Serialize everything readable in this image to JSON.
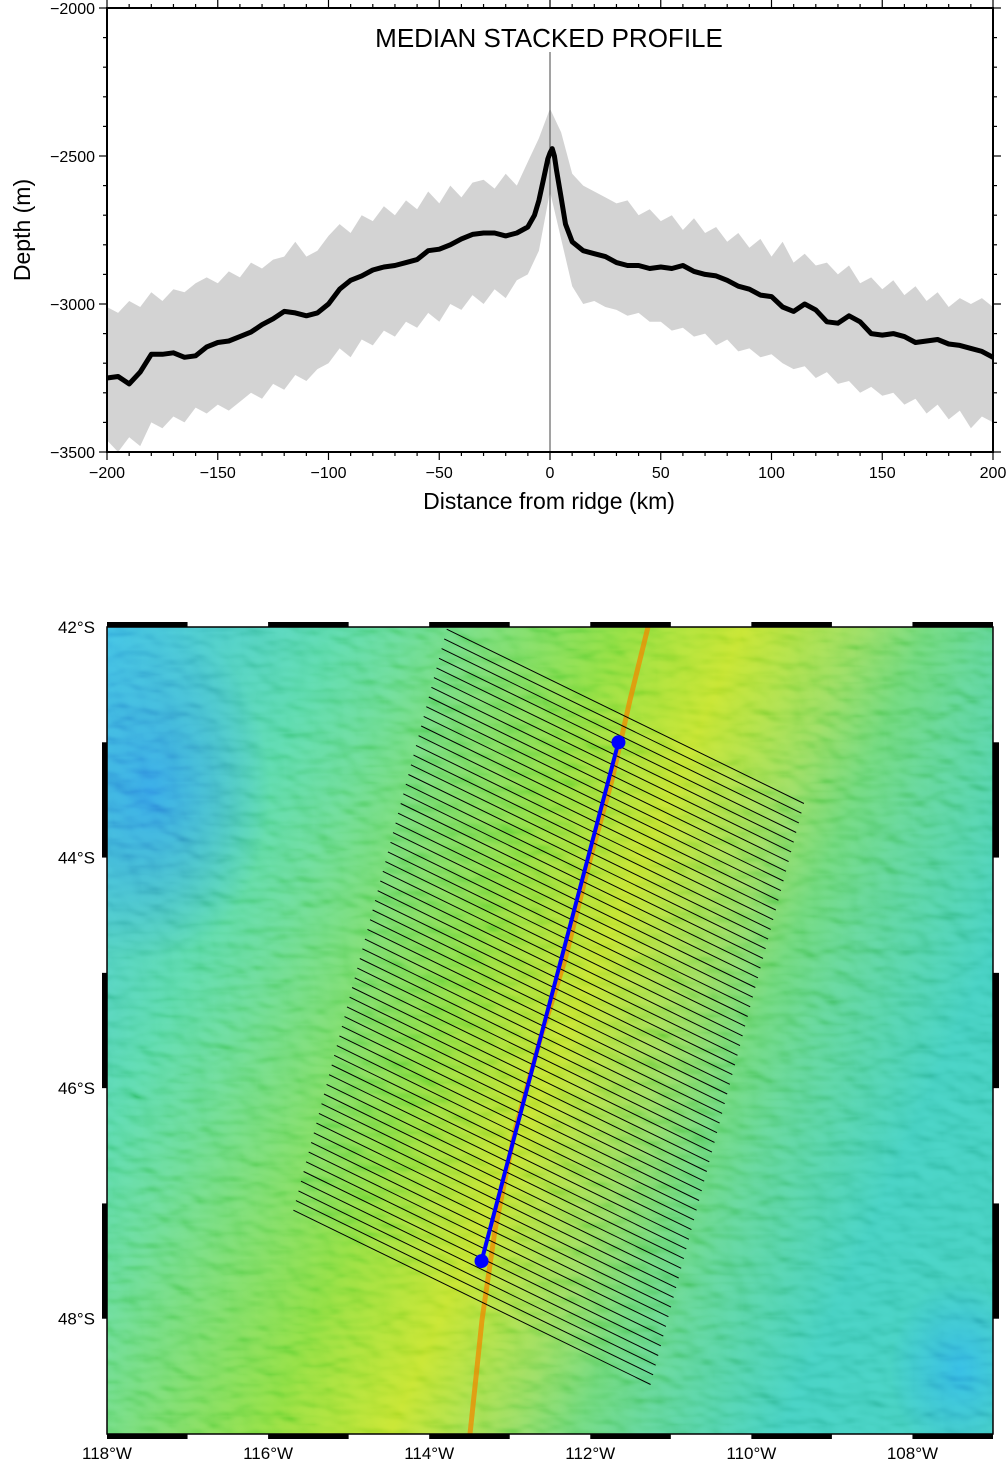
{
  "chart_data": [
    {
      "type": "line",
      "title": "MEDIAN STACKED PROFILE",
      "xlabel": "Distance from ridge (km)",
      "ylabel": "Depth (m)",
      "xlim": [
        -200,
        200
      ],
      "ylim": [
        -3500,
        -2000
      ],
      "x_ticks": [
        -200,
        -150,
        -100,
        -50,
        0,
        50,
        100,
        150,
        200
      ],
      "x_tick_labels": [
        "−200",
        "−150",
        "−100",
        "−50",
        "0",
        "50",
        "100",
        "150",
        "200"
      ],
      "y_ticks": [
        -3500,
        -3000,
        -2500,
        -2000
      ],
      "y_tick_labels": [
        "−3500",
        "−3000",
        "−2500",
        "−2000"
      ],
      "grid": false,
      "ridge_marker_x": 0,
      "colors": {
        "median": "#000000",
        "envelope": "#d3d3d3"
      },
      "median": {
        "x": [
          -200,
          -195,
          -190,
          -185,
          -180,
          -175,
          -170,
          -165,
          -160,
          -155,
          -150,
          -145,
          -140,
          -135,
          -130,
          -125,
          -120,
          -115,
          -110,
          -105,
          -100,
          -95,
          -90,
          -85,
          -80,
          -75,
          -70,
          -65,
          -60,
          -55,
          -50,
          -45,
          -40,
          -35,
          -30,
          -25,
          -20,
          -15,
          -10,
          -7,
          -5,
          -3,
          -1,
          0,
          1,
          2,
          3,
          5,
          7,
          10,
          15,
          20,
          25,
          30,
          35,
          40,
          45,
          50,
          55,
          60,
          65,
          70,
          75,
          80,
          85,
          90,
          95,
          100,
          105,
          110,
          115,
          120,
          125,
          130,
          135,
          140,
          145,
          150,
          155,
          160,
          165,
          170,
          175,
          180,
          185,
          190,
          195,
          200
        ],
        "y": [
          -3250,
          -3245,
          -3270,
          -3230,
          -3170,
          -3170,
          -3165,
          -3180,
          -3175,
          -3145,
          -3130,
          -3125,
          -3110,
          -3095,
          -3070,
          -3050,
          -3025,
          -3030,
          -3040,
          -3030,
          -3000,
          -2950,
          -2920,
          -2905,
          -2885,
          -2875,
          -2870,
          -2860,
          -2850,
          -2820,
          -2815,
          -2800,
          -2780,
          -2765,
          -2760,
          -2760,
          -2770,
          -2760,
          -2740,
          -2700,
          -2650,
          -2580,
          -2510,
          -2490,
          -2475,
          -2500,
          -2550,
          -2640,
          -2730,
          -2790,
          -2820,
          -2830,
          -2840,
          -2860,
          -2870,
          -2870,
          -2880,
          -2875,
          -2880,
          -2870,
          -2890,
          -2900,
          -2905,
          -2920,
          -2940,
          -2950,
          -2970,
          -2975,
          -3010,
          -3025,
          -3000,
          -3020,
          -3060,
          -3065,
          -3040,
          -3060,
          -3100,
          -3105,
          -3100,
          -3110,
          -3130,
          -3125,
          -3120,
          -3135,
          -3140,
          -3150,
          -3160,
          -3180
        ]
      },
      "envelope_upper": {
        "x": [
          -200,
          -195,
          -190,
          -185,
          -180,
          -175,
          -170,
          -165,
          -160,
          -155,
          -150,
          -145,
          -140,
          -135,
          -130,
          -125,
          -120,
          -115,
          -110,
          -105,
          -100,
          -95,
          -90,
          -85,
          -80,
          -75,
          -70,
          -65,
          -60,
          -55,
          -50,
          -45,
          -40,
          -35,
          -30,
          -25,
          -20,
          -15,
          -10,
          -5,
          0,
          5,
          10,
          15,
          20,
          25,
          30,
          35,
          40,
          45,
          50,
          55,
          60,
          65,
          70,
          75,
          80,
          85,
          90,
          95,
          100,
          105,
          110,
          115,
          120,
          125,
          130,
          135,
          140,
          145,
          150,
          155,
          160,
          165,
          170,
          175,
          180,
          185,
          190,
          195,
          200
        ],
        "y": [
          -3010,
          -3030,
          -2990,
          -3010,
          -2960,
          -2990,
          -2950,
          -2960,
          -2930,
          -2910,
          -2930,
          -2890,
          -2910,
          -2860,
          -2880,
          -2850,
          -2840,
          -2790,
          -2840,
          -2820,
          -2770,
          -2730,
          -2760,
          -2700,
          -2720,
          -2670,
          -2700,
          -2650,
          -2680,
          -2620,
          -2660,
          -2600,
          -2640,
          -2590,
          -2580,
          -2610,
          -2560,
          -2600,
          -2520,
          -2440,
          -2340,
          -2420,
          -2560,
          -2600,
          -2620,
          -2640,
          -2660,
          -2650,
          -2700,
          -2680,
          -2720,
          -2700,
          -2750,
          -2710,
          -2760,
          -2740,
          -2790,
          -2760,
          -2810,
          -2780,
          -2840,
          -2790,
          -2860,
          -2830,
          -2870,
          -2860,
          -2900,
          -2870,
          -2930,
          -2910,
          -2950,
          -2920,
          -2970,
          -2940,
          -2990,
          -2960,
          -3010,
          -2980,
          -3000,
          -2980,
          -3010
        ]
      },
      "envelope_lower": {
        "x": [
          -200,
          -195,
          -190,
          -185,
          -180,
          -175,
          -170,
          -165,
          -160,
          -155,
          -150,
          -145,
          -140,
          -135,
          -130,
          -125,
          -120,
          -115,
          -110,
          -105,
          -100,
          -95,
          -90,
          -85,
          -80,
          -75,
          -70,
          -65,
          -60,
          -55,
          -50,
          -45,
          -40,
          -35,
          -30,
          -25,
          -20,
          -15,
          -10,
          -5,
          0,
          5,
          10,
          15,
          20,
          25,
          30,
          35,
          40,
          45,
          50,
          55,
          60,
          65,
          70,
          75,
          80,
          85,
          90,
          95,
          100,
          105,
          110,
          115,
          120,
          125,
          130,
          135,
          140,
          145,
          150,
          155,
          160,
          165,
          170,
          175,
          180,
          185,
          190,
          195,
          200
        ],
        "y": [
          -3460,
          -3500,
          -3450,
          -3480,
          -3400,
          -3420,
          -3380,
          -3400,
          -3350,
          -3370,
          -3340,
          -3360,
          -3330,
          -3300,
          -3320,
          -3270,
          -3290,
          -3240,
          -3260,
          -3220,
          -3200,
          -3150,
          -3180,
          -3120,
          -3140,
          -3090,
          -3110,
          -3060,
          -3080,
          -3030,
          -3060,
          -3000,
          -3020,
          -2970,
          -3000,
          -2950,
          -2980,
          -2920,
          -2900,
          -2820,
          -2620,
          -2780,
          -2940,
          -3000,
          -2990,
          -3010,
          -3020,
          -3040,
          -3030,
          -3060,
          -3060,
          -3090,
          -3080,
          -3110,
          -3100,
          -3140,
          -3120,
          -3160,
          -3150,
          -3180,
          -3170,
          -3200,
          -3220,
          -3210,
          -3250,
          -3230,
          -3270,
          -3260,
          -3300,
          -3280,
          -3310,
          -3300,
          -3340,
          -3320,
          -3370,
          -3340,
          -3390,
          -3360,
          -3420,
          -3380,
          -3400
        ]
      }
    },
    {
      "type": "map",
      "lon_range": [
        -118,
        -107
      ],
      "lat_range": [
        -49,
        -42
      ],
      "x_ticks": [
        -118,
        -116,
        -114,
        -112,
        -110,
        -108
      ],
      "x_tick_labels": [
        "118°W",
        "116°W",
        "114°W",
        "112°W",
        "110°W",
        "108°W"
      ],
      "y_ticks": [
        -42,
        -44,
        -46,
        -48
      ],
      "y_tick_labels": [
        "42°S",
        "44°S",
        "46°S",
        "48°S"
      ],
      "colors": {
        "ridge_line": "#0000ff",
        "cross_profiles": "#000000",
        "spreading_axis": "#f08a00"
      },
      "ridge_segment": {
        "start": [
          -111.65,
          -43.0
        ],
        "end": [
          -113.35,
          -47.5
        ]
      },
      "cross_profile_count": 61,
      "cross_profile_half_length_km": 200
    }
  ]
}
